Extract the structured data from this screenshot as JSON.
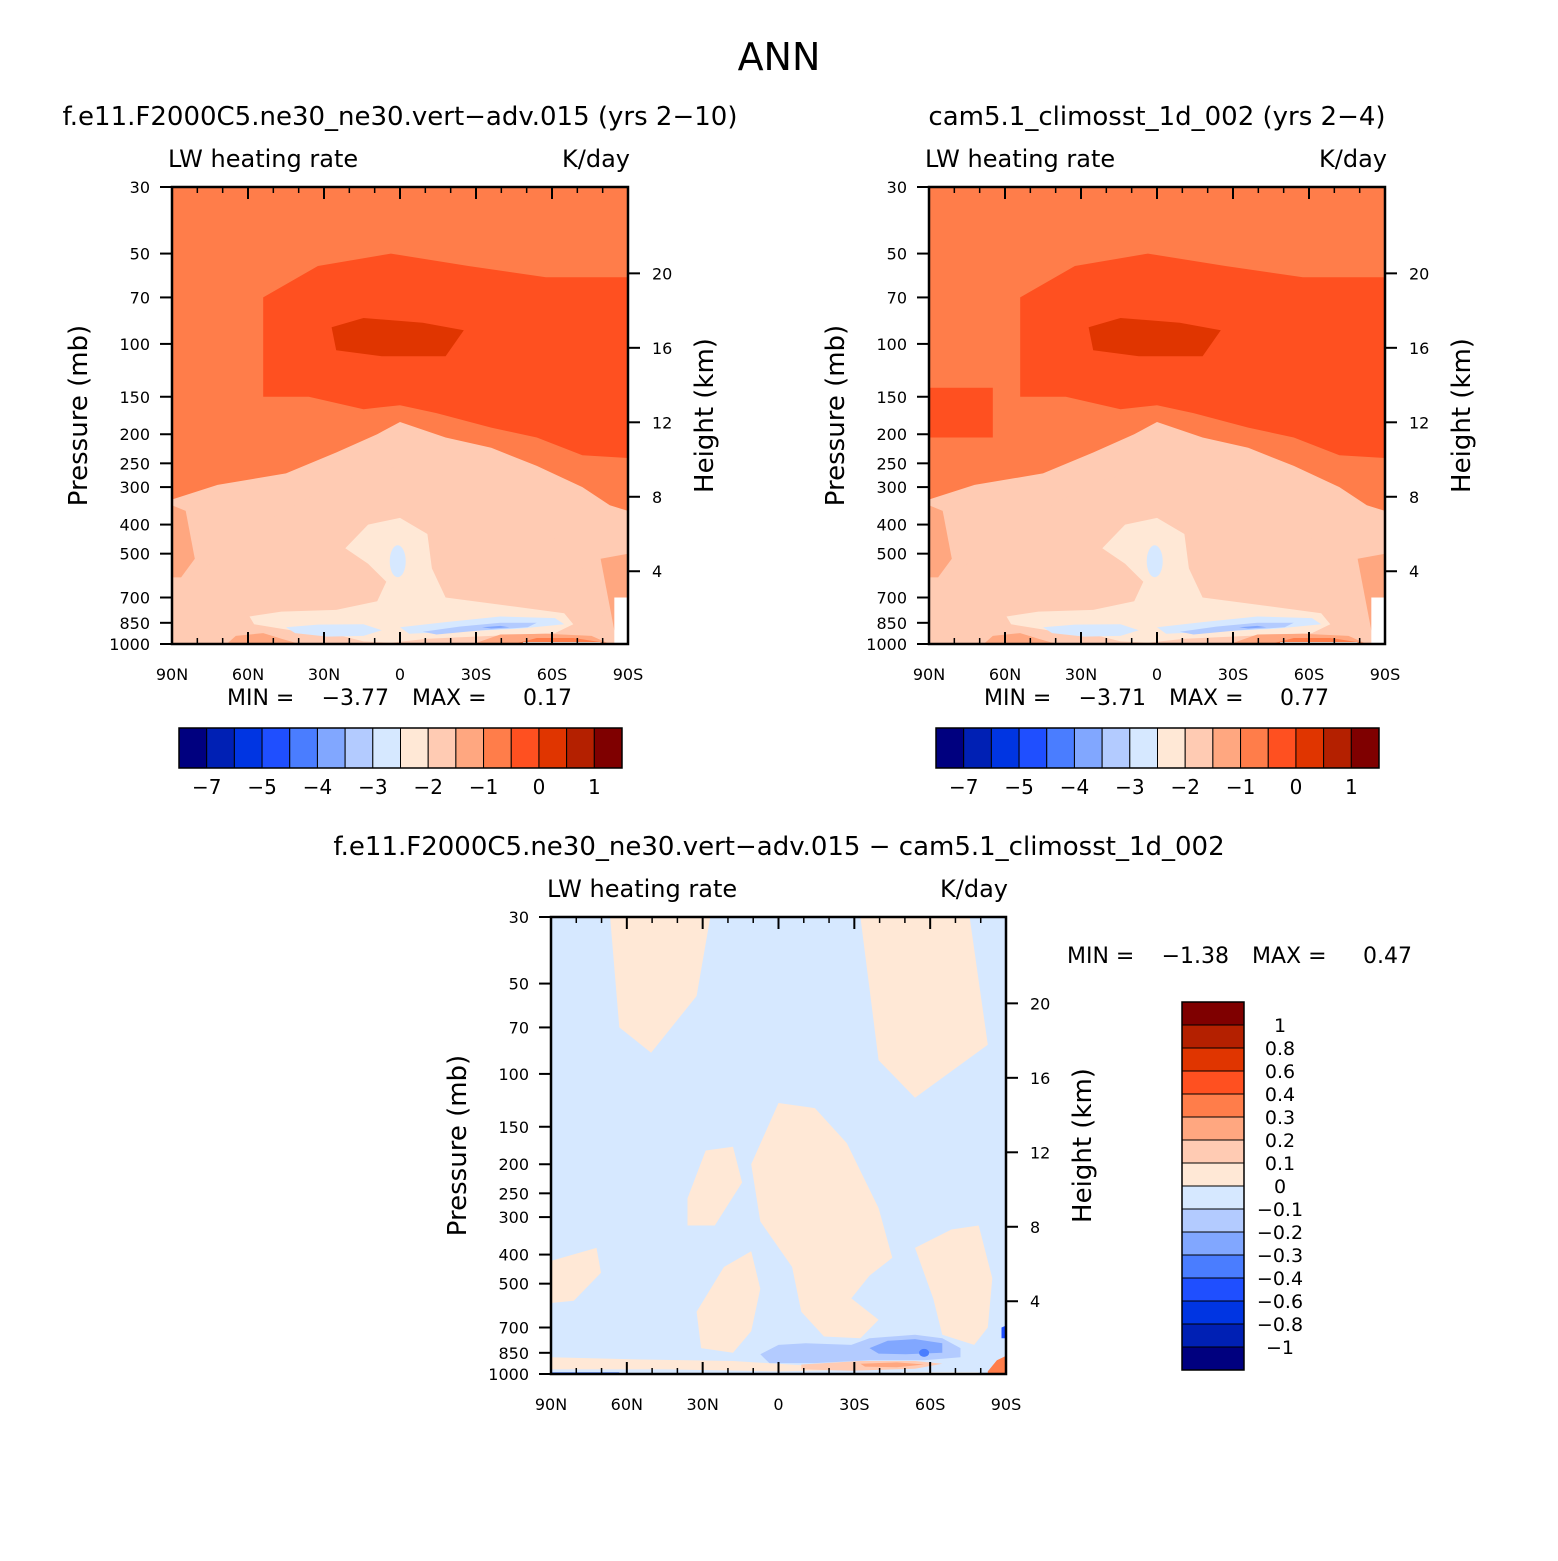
{
  "figure": {
    "title": "ANN"
  },
  "colors": {
    "diverging": [
      "#00007f",
      "#0020b4",
      "#0035e2",
      "#1f4fff",
      "#4a7dff",
      "#81a7ff",
      "#b3cbff",
      "#d6e8ff",
      "#ffe8d6",
      "#ffcbb3",
      "#ffa780",
      "#ff7d4a",
      "#ff5020",
      "#e03500",
      "#b42000",
      "#7f0000"
    ]
  },
  "chart_data": [
    {
      "id": "panel-model",
      "type": "heatmap",
      "title": "f.e11.F2000C5.ne30_ne30.vert-adv.015 (yrs 2-10)",
      "variable": "LW heating rate",
      "units": "K/day",
      "xlabel": "",
      "ylabel": "Pressure (mb)",
      "y2label": "Height (km)",
      "x_ticks": [
        "90N",
        "60N",
        "30N",
        "0",
        "30S",
        "60S",
        "90S"
      ],
      "y_ticks": [
        30,
        50,
        70,
        100,
        150,
        200,
        250,
        300,
        400,
        500,
        700,
        850,
        1000
      ],
      "y2_ticks": [
        20,
        16,
        12,
        8,
        4
      ],
      "y_scale": "log",
      "ylim": [
        30,
        1000
      ],
      "stats": {
        "min_label": "MIN =",
        "min": "-3.77",
        "max_label": "MAX =",
        "max": "0.17"
      },
      "colorbar": {
        "orientation": "horizontal",
        "labels": [
          "-7",
          "-5",
          "-4",
          "-3",
          "-2",
          "-1",
          "0",
          "1"
        ]
      }
    },
    {
      "id": "panel-obs",
      "type": "heatmap",
      "title": "cam5.1_climosst_1d_002 (yrs 2-4)",
      "variable": "LW heating rate",
      "units": "K/day",
      "xlabel": "",
      "ylabel": "Pressure (mb)",
      "y2label": "Height (km)",
      "x_ticks": [
        "90N",
        "60N",
        "30N",
        "0",
        "30S",
        "60S",
        "90S"
      ],
      "y_ticks": [
        30,
        50,
        70,
        100,
        150,
        200,
        250,
        300,
        400,
        500,
        700,
        850,
        1000
      ],
      "y2_ticks": [
        20,
        16,
        12,
        8,
        4
      ],
      "y_scale": "log",
      "ylim": [
        30,
        1000
      ],
      "stats": {
        "min_label": "MIN =",
        "min": "-3.71",
        "max_label": "MAX =",
        "max": "0.77"
      },
      "colorbar": {
        "orientation": "horizontal",
        "labels": [
          "-7",
          "-5",
          "-4",
          "-3",
          "-2",
          "-1",
          "0",
          "1"
        ]
      }
    },
    {
      "id": "panel-diff",
      "type": "heatmap",
      "title": "f.e11.F2000C5.ne30_ne30.vert-adv.015 - cam5.1_climosst_1d_002",
      "variable": "LW heating rate",
      "units": "K/day",
      "xlabel": "",
      "ylabel": "Pressure (mb)",
      "y2label": "Height (km)",
      "x_ticks": [
        "90N",
        "60N",
        "30N",
        "0",
        "30S",
        "60S",
        "90S"
      ],
      "y_ticks": [
        30,
        50,
        70,
        100,
        150,
        200,
        250,
        300,
        400,
        500,
        700,
        850,
        1000
      ],
      "y2_ticks": [
        20,
        16,
        12,
        8,
        4
      ],
      "y_scale": "log",
      "ylim": [
        30,
        1000
      ],
      "stats": {
        "min_label": "MIN =",
        "min": "-1.38",
        "max_label": "MAX =",
        "max": "0.47"
      },
      "colorbar": {
        "orientation": "vertical",
        "labels": [
          "1",
          "0.8",
          "0.6",
          "0.4",
          "0.3",
          "0.2",
          "0.1",
          "0",
          "-0.1",
          "-0.2",
          "-0.3",
          "-0.4",
          "-0.6",
          "-0.8",
          "-1"
        ]
      }
    }
  ]
}
